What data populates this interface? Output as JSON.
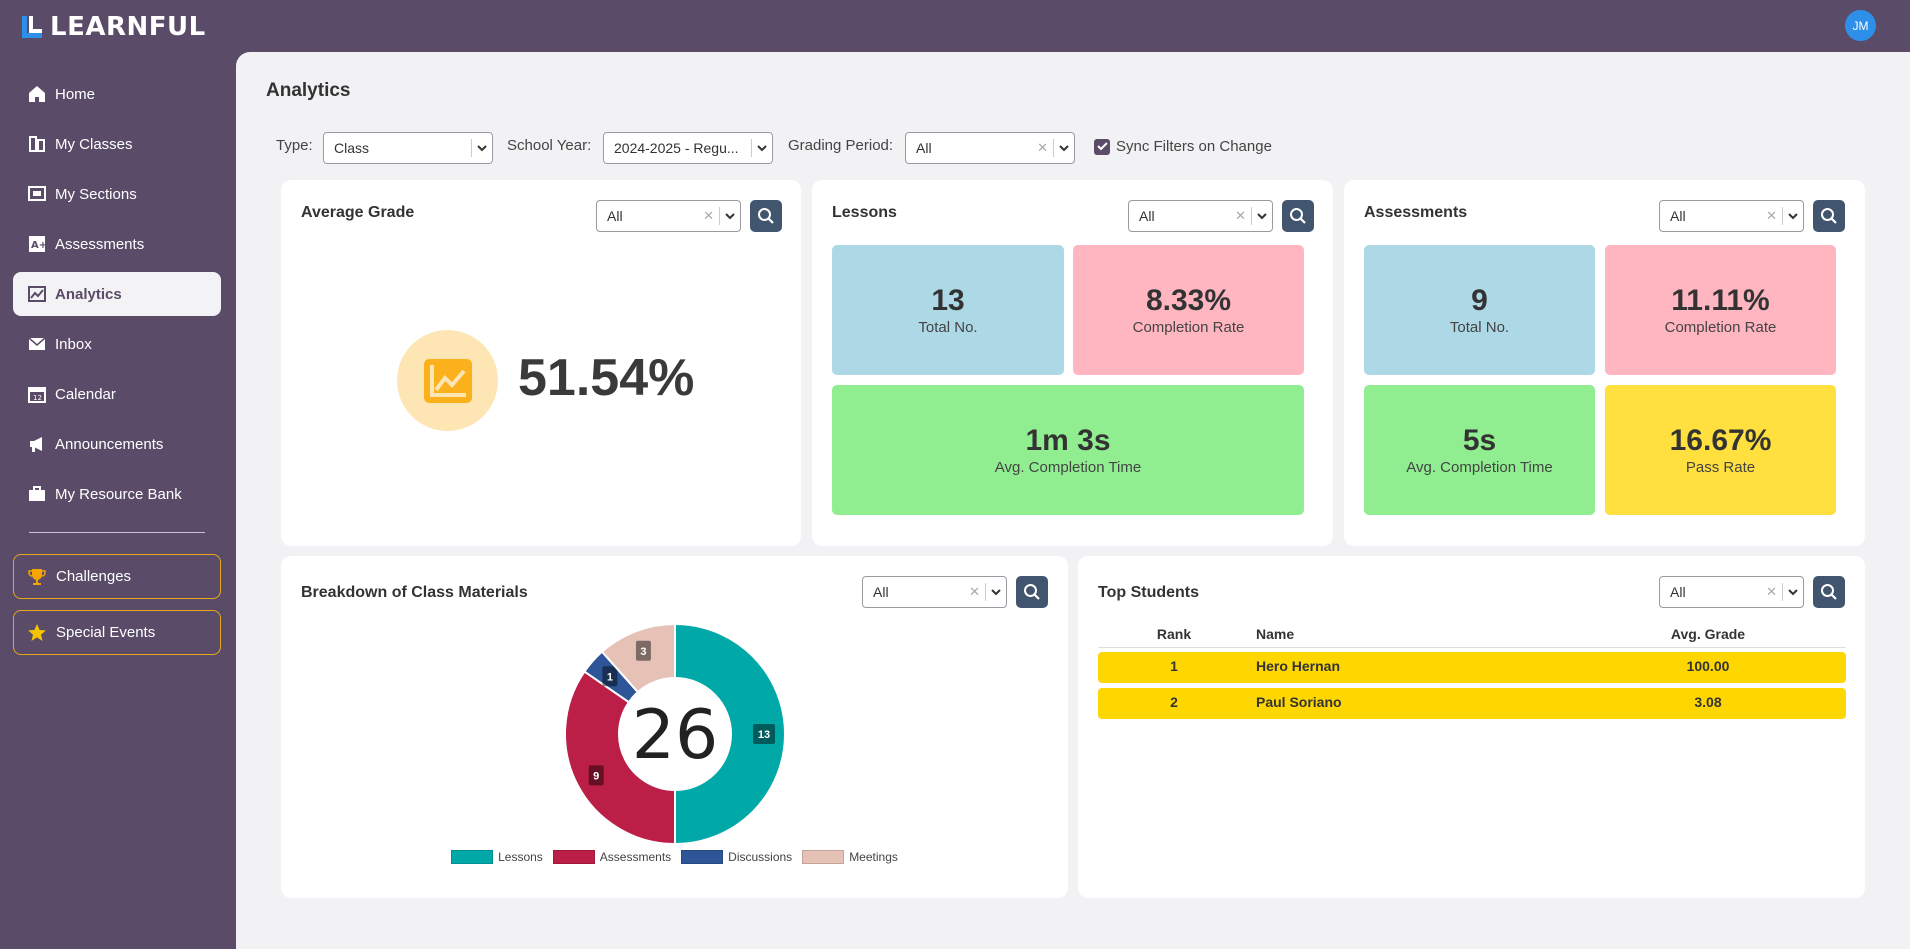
{
  "app": {
    "name": "LEARNFUL",
    "user_initials": "JM",
    "brand_color": "#5a4c68"
  },
  "sidebar": {
    "items": [
      {
        "label": "Home",
        "icon": "home-icon"
      },
      {
        "label": "My Classes",
        "icon": "classes-icon"
      },
      {
        "label": "My Sections",
        "icon": "sections-icon"
      },
      {
        "label": "Assessments",
        "icon": "assessments-icon"
      },
      {
        "label": "Analytics",
        "icon": "analytics-icon",
        "active": true
      },
      {
        "label": "Inbox",
        "icon": "inbox-icon"
      },
      {
        "label": "Calendar",
        "icon": "calendar-icon"
      },
      {
        "label": "Announcements",
        "icon": "megaphone-icon"
      },
      {
        "label": "My Resource Bank",
        "icon": "briefcase-icon"
      }
    ],
    "special": [
      {
        "label": "Challenges",
        "icon": "trophy-icon"
      },
      {
        "label": "Special Events",
        "icon": "star-icon"
      }
    ]
  },
  "page": {
    "title": "Analytics"
  },
  "filters": {
    "type_label": "Type:",
    "type_value": "Class",
    "year_label": "School Year:",
    "year_value": "2024-2025 - Regu...",
    "period_label": "Grading Period:",
    "period_value": "All",
    "sync_label": "Sync Filters on Change",
    "sync_checked": true
  },
  "average_grade": {
    "title": "Average Grade",
    "filter": "All",
    "value": "51.54%"
  },
  "lessons": {
    "title": "Lessons",
    "filter": "All",
    "total": {
      "value": "13",
      "label": "Total No."
    },
    "completion": {
      "value": "8.33%",
      "label": "Completion Rate"
    },
    "avg_time": {
      "value": "1m 3s",
      "label": "Avg. Completion Time"
    }
  },
  "assessments": {
    "title": "Assessments",
    "filter": "All",
    "total": {
      "value": "9",
      "label": "Total No."
    },
    "completion": {
      "value": "11.11%",
      "label": "Completion Rate"
    },
    "avg_time": {
      "value": "5s",
      "label": "Avg. Completion Time"
    },
    "pass_rate": {
      "value": "16.67%",
      "label": "Pass Rate"
    }
  },
  "breakdown": {
    "title": "Breakdown of Class Materials",
    "filter": "All",
    "total": "26"
  },
  "chart_data": {
    "type": "pie",
    "title": "Breakdown of Class Materials",
    "center_label": "26",
    "categories": [
      "Lessons",
      "Assessments",
      "Discussions",
      "Meetings"
    ],
    "values": [
      13,
      9,
      1,
      3
    ],
    "colors": [
      "#00a8a8",
      "#bb1e46",
      "#2e5597",
      "#e6c1b6"
    ],
    "legend": "bottom"
  },
  "top_students": {
    "title": "Top Students",
    "filter": "All",
    "columns": [
      "Rank",
      "Name",
      "Avg. Grade"
    ],
    "rows": [
      {
        "rank": "1",
        "name": "Hero Hernan",
        "grade": "100.00"
      },
      {
        "rank": "2",
        "name": "Paul Soriano",
        "grade": "3.08"
      }
    ]
  }
}
